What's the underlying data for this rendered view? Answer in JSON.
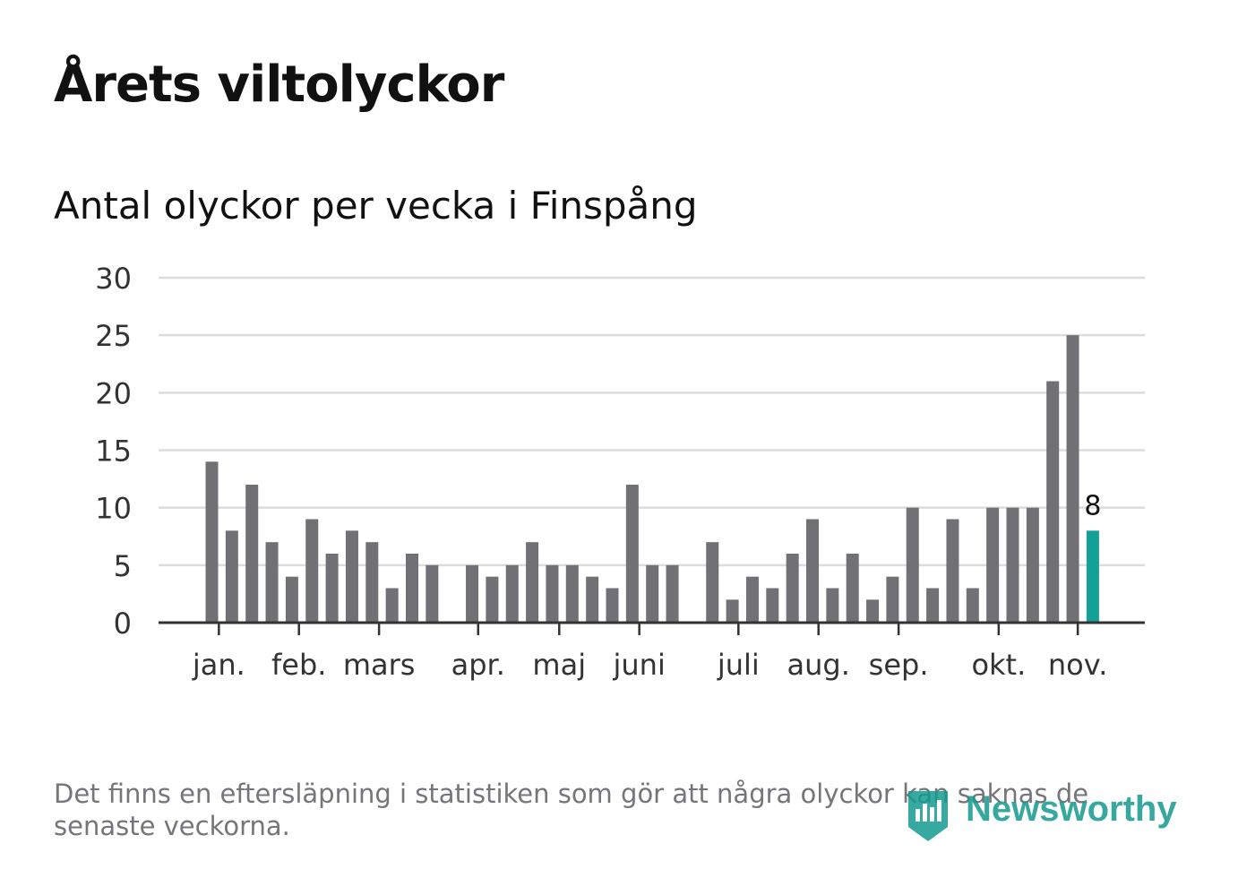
{
  "header": {
    "title": "Årets viltolyckor",
    "subtitle": "Antal olyckor per vecka i Finspång"
  },
  "chart_data": {
    "type": "bar",
    "title": "Årets viltolyckor",
    "subtitle": "Antal olyckor per vecka i Finspång",
    "xlabel": "",
    "ylabel": "",
    "ylim": [
      0,
      30
    ],
    "yticks": [
      0,
      5,
      10,
      15,
      20,
      25,
      30
    ],
    "grid": true,
    "series": [
      {
        "name": "Antal olyckor",
        "weeks": [
          1,
          2,
          3,
          4,
          5,
          6,
          7,
          8,
          9,
          10,
          11,
          12,
          13,
          14,
          15,
          16,
          17,
          18,
          19,
          20,
          21,
          22,
          23,
          24,
          25,
          26,
          27,
          28,
          29,
          30,
          31,
          32,
          33,
          34,
          35,
          36,
          37,
          38,
          39,
          40,
          41,
          42,
          43,
          44,
          45,
          46
        ],
        "values": [
          14,
          8,
          12,
          7,
          4,
          9,
          6,
          8,
          7,
          3,
          6,
          5,
          null,
          5,
          4,
          5,
          7,
          5,
          5,
          4,
          3,
          12,
          5,
          5,
          null,
          7,
          2,
          4,
          3,
          6,
          9,
          3,
          6,
          2,
          4,
          10,
          3,
          9,
          3,
          10,
          10,
          10,
          21,
          25,
          8,
          null
        ]
      }
    ],
    "highlight": {
      "week": 45,
      "value": 8,
      "label": "8"
    },
    "month_ticks": [
      {
        "label": "jan.",
        "week": 1.35
      },
      {
        "label": "feb.",
        "week": 5.35
      },
      {
        "label": "mars",
        "week": 9.35
      },
      {
        "label": "apr.",
        "week": 14.3
      },
      {
        "label": "maj",
        "week": 18.35
      },
      {
        "label": "juni",
        "week": 22.35
      },
      {
        "label": "juli",
        "week": 27.3
      },
      {
        "label": "aug.",
        "week": 31.3
      },
      {
        "label": "sep.",
        "week": 35.3
      },
      {
        "label": "okt.",
        "week": 40.3
      },
      {
        "label": "nov.",
        "week": 44.25
      }
    ],
    "colors": {
      "bar": "#717075",
      "highlight": "#13a096",
      "grid": "#dcdcdc",
      "axis": "#333333"
    }
  },
  "footnote": "Det finns en eftersläpning i statistiken som gör att några olyckor kan saknas de senaste veckorna.",
  "logo": {
    "text": "Newsworthy",
    "icon": "newsworthy-logo-icon",
    "color": "#139a8f"
  }
}
